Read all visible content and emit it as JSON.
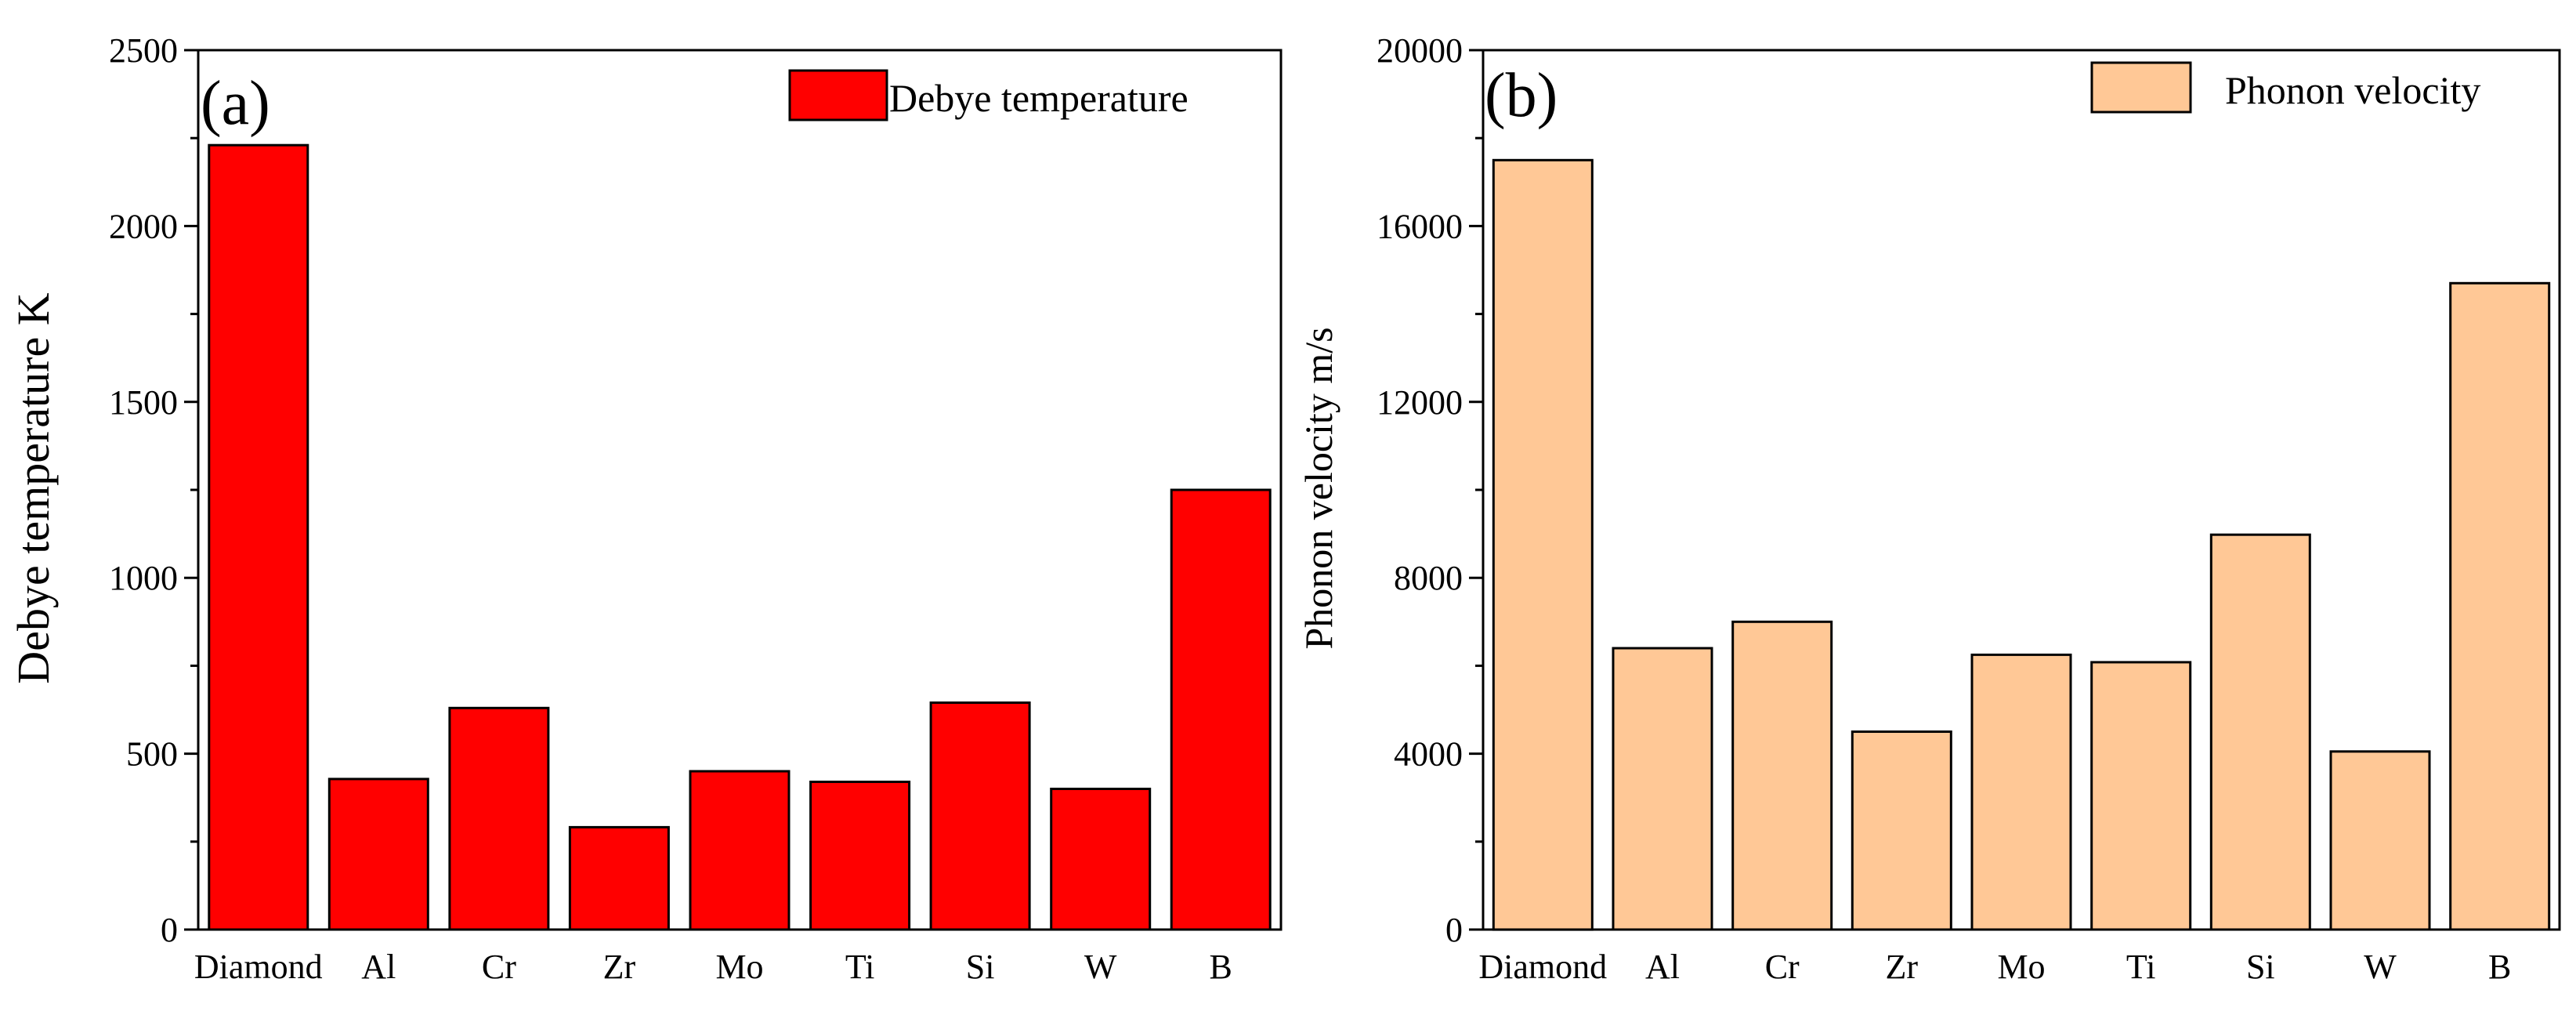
{
  "chart_data": [
    {
      "type": "bar",
      "panel_label": "(a)",
      "title": "",
      "xlabel": "",
      "ylabel": "Debye temperature K",
      "categories": [
        "Diamond",
        "Al",
        "Cr",
        "Zr",
        "Mo",
        "Ti",
        "Si",
        "W",
        "B"
      ],
      "series": [
        {
          "name": "Debye temperature",
          "values": [
            2230,
            428,
            630,
            291,
            450,
            420,
            645,
            400,
            1250
          ]
        }
      ],
      "ylim": [
        0,
        2500
      ],
      "yticks": [
        0,
        500,
        1000,
        1500,
        2000,
        2500
      ],
      "ytick_labels": [
        "0",
        "500",
        "1000",
        "1500",
        "2000",
        "2500"
      ],
      "legend_position": "top-right",
      "color": "#ff0000",
      "grid": false
    },
    {
      "type": "bar",
      "panel_label": "(b)",
      "title": "",
      "xlabel": "",
      "ylabel": "Phonon velocity m/s",
      "categories": [
        "Diamond",
        "Al",
        "Cr",
        "Zr",
        "Mo",
        "Ti",
        "Si",
        "W",
        "B"
      ],
      "series": [
        {
          "name": "Phonon velocity",
          "values": [
            17500,
            6400,
            7000,
            4500,
            6250,
            6080,
            8980,
            4050,
            14700
          ]
        }
      ],
      "ylim": [
        0,
        20000
      ],
      "yticks": [
        0,
        4000,
        8000,
        12000,
        16000,
        20000
      ],
      "ytick_labels": [
        "0",
        "4000",
        "8000",
        "12000",
        "16000",
        "20000"
      ],
      "legend_position": "top-right",
      "color": "#ffc896",
      "grid": false
    }
  ]
}
